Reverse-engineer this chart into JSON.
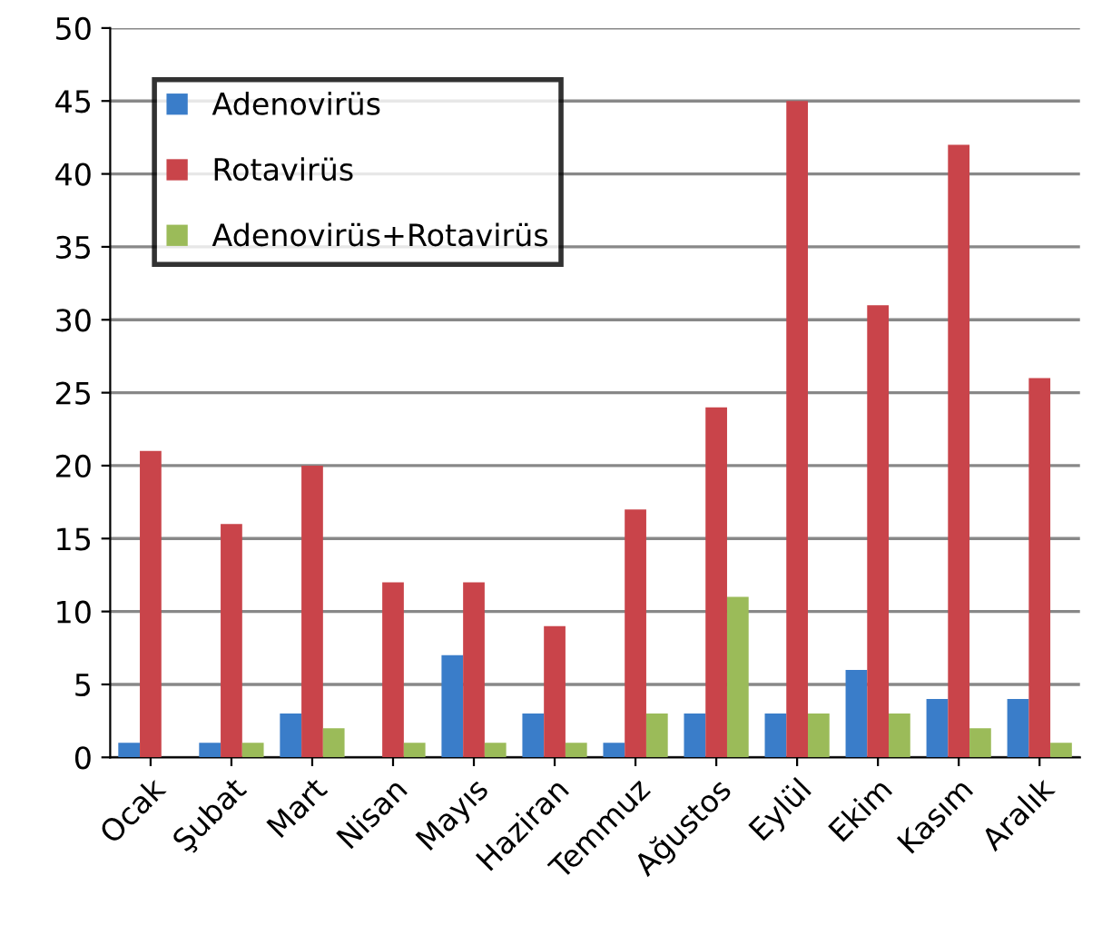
{
  "chart_data": {
    "type": "bar",
    "categories": [
      "Ocak",
      "Şubat",
      "Mart",
      "Nisan",
      "Mayıs",
      "Haziran",
      "Temmuz",
      "Ağustos",
      "Eylül",
      "Ekim",
      "Kasım",
      "Aralık"
    ],
    "series": [
      {
        "name": "Adenovirüs",
        "color": "#3a7dc9",
        "values": [
          1,
          1,
          3,
          0,
          7,
          3,
          1,
          3,
          3,
          6,
          4,
          4
        ]
      },
      {
        "name": "Rotavirüs",
        "color": "#c9444a",
        "values": [
          21,
          16,
          20,
          12,
          12,
          9,
          17,
          24,
          45,
          31,
          42,
          26
        ]
      },
      {
        "name": "Adenovirüs+Rotavirüs",
        "color": "#9bbb59",
        "values": [
          0,
          1,
          2,
          1,
          1,
          1,
          3,
          11,
          3,
          3,
          2,
          1
        ]
      }
    ],
    "ylim": [
      0,
      50
    ],
    "yticks": [
      0,
      5,
      10,
      15,
      20,
      25,
      30,
      35,
      40,
      45,
      50
    ],
    "grid": "y",
    "legend": "top left"
  }
}
